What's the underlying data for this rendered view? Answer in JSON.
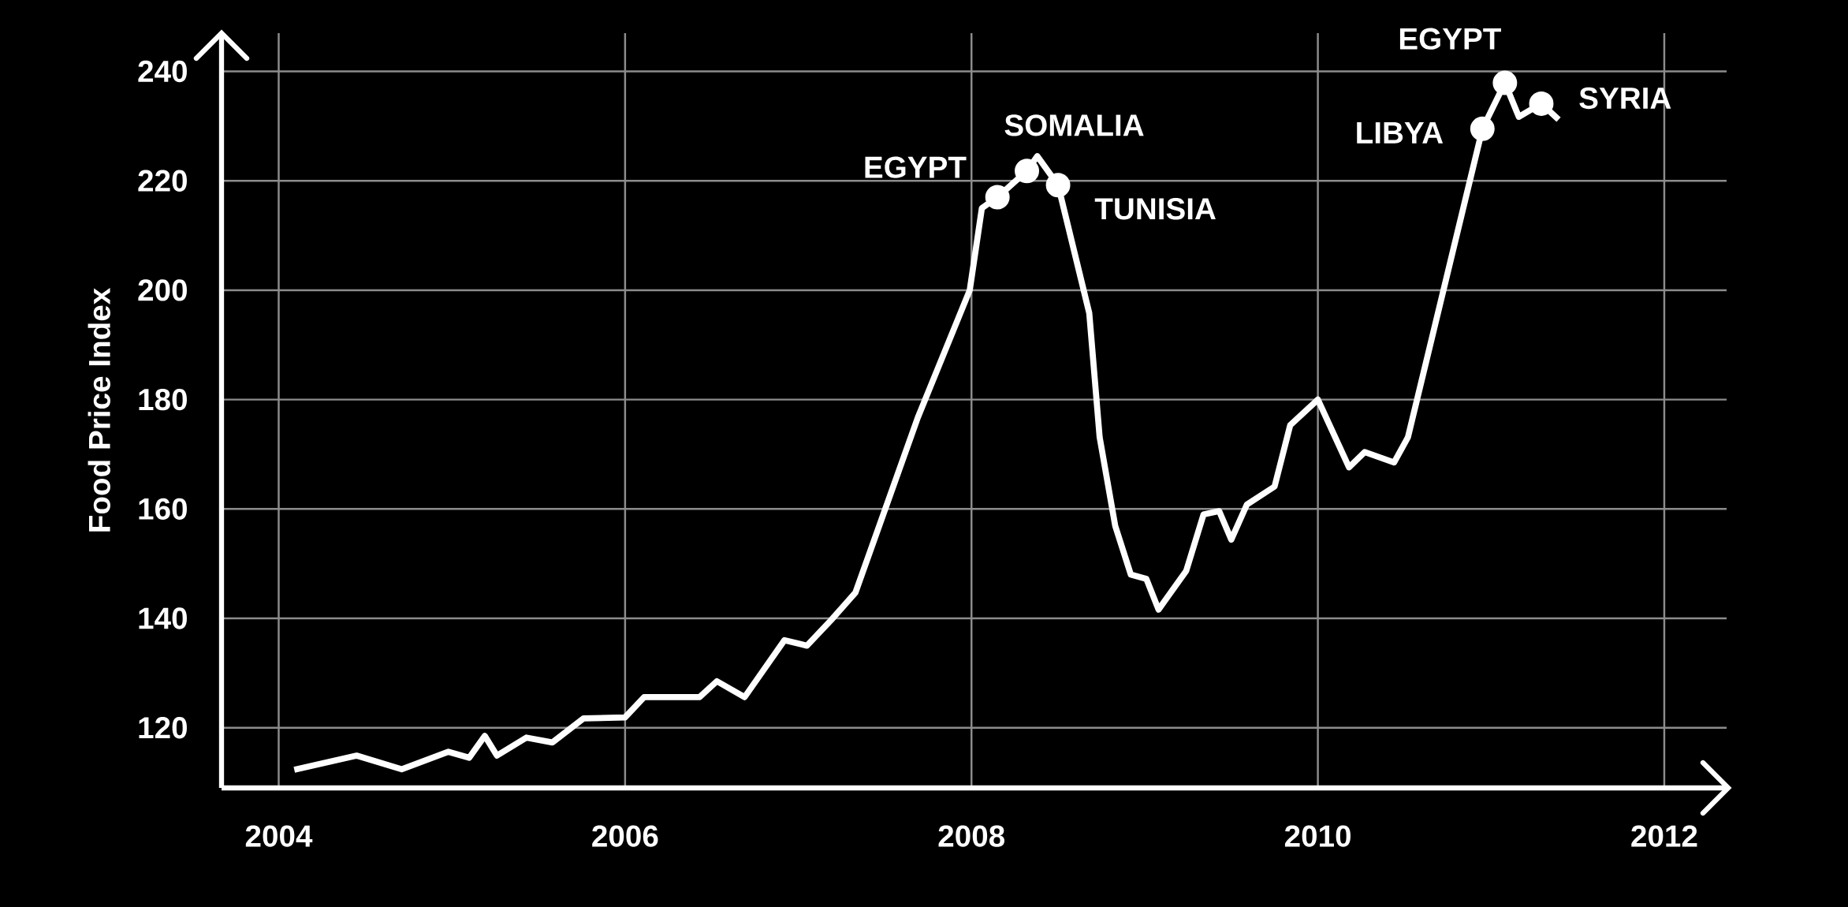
{
  "chart_data": {
    "type": "line",
    "ylabel": "Food Price Index",
    "xlim": [
      2003.67,
      2012.36
    ],
    "ylim": [
      109,
      247
    ],
    "xticks": [
      2004,
      2006,
      2008,
      2010,
      2012
    ],
    "yticks": [
      120,
      140,
      160,
      180,
      200,
      220,
      240
    ],
    "grid": true,
    "series": [
      {
        "color": "#ffffff",
        "x": [
          2004.09,
          2004.45,
          2004.71,
          2004.98,
          2005.1,
          2005.19,
          2005.26,
          2005.43,
          2005.58,
          2005.76,
          2006.0,
          2006.11,
          2006.43,
          2006.53,
          2006.69,
          2006.92,
          2007.05,
          2007.19,
          2007.33,
          2007.69,
          2007.99,
          2008.06,
          2008.15,
          2008.32,
          2008.38,
          2008.5,
          2008.68,
          2008.74,
          2008.83,
          2008.92,
          2009.01,
          2009.08,
          2009.24,
          2009.34,
          2009.43,
          2009.5,
          2009.59,
          2009.75,
          2009.84,
          2010.0,
          2010.18,
          2010.27,
          2010.44,
          2010.52,
          2010.95,
          2011.08,
          2011.16,
          2011.29,
          2011.39
        ],
        "values": [
          112.3,
          114.9,
          112.4,
          115.6,
          114.5,
          118.5,
          114.9,
          118.2,
          117.3,
          121.7,
          121.9,
          125.6,
          125.6,
          128.5,
          125.6,
          136.0,
          135.0,
          139.7,
          144.7,
          176.7,
          200,
          215.0,
          217.0,
          221.8,
          224.5,
          219.2,
          195.8,
          173.1,
          156.9,
          148.0,
          147.2,
          141.6,
          148.7,
          159.0,
          159.6,
          154.4,
          160.8,
          164.1,
          175.3,
          180,
          167.6,
          170.4,
          168.5,
          173.1,
          229.5,
          237.9,
          231.7,
          234.1,
          231.2
        ]
      },
      {
        "type": "scatter",
        "color": "#ffffff",
        "marker": "circle",
        "x": [
          2008.15,
          2008.32,
          2008.5,
          2010.95,
          2011.08,
          2011.29
        ],
        "values": [
          217.0,
          221.8,
          219.2,
          229.5,
          237.9,
          234.1
        ]
      }
    ],
    "annotations": [
      {
        "text": "EGYPT",
        "x": 2008.15,
        "y": 217.0
      },
      {
        "text": "SOMALIA",
        "x": 2008.32,
        "y": 221.8
      },
      {
        "text": "TUNISIA",
        "x": 2008.5,
        "y": 219.2
      },
      {
        "text": "LIBYA",
        "x": 2010.95,
        "y": 229.5
      },
      {
        "text": "EGYPT",
        "x": 2011.08,
        "y": 237.9
      },
      {
        "text": "SYRIA",
        "x": 2011.29,
        "y": 234.1
      }
    ]
  }
}
